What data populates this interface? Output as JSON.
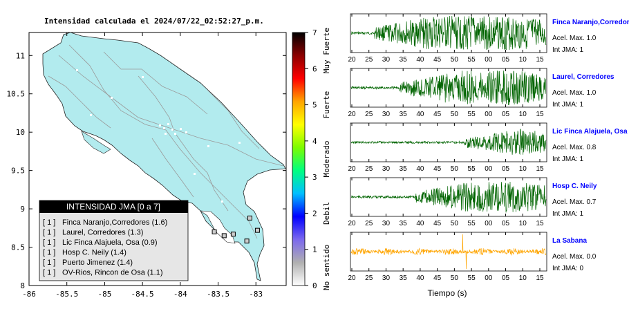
{
  "title": "Intensidad calculada el 2024/07/22_02:52:27_p.m.",
  "chart_data": [
    {
      "type": "map",
      "xlim": [
        -86,
        -82.6
      ],
      "ylim": [
        8,
        11.3
      ],
      "x_ticks": [
        -86,
        -85.5,
        -85,
        -84.5,
        -84,
        -83.5,
        -83
      ],
      "x_tick_labels": [
        "-86",
        "-85.5",
        "-85",
        "-84.5",
        "-84",
        "-83.5",
        "-83"
      ],
      "y_ticks": [
        8,
        8.5,
        9,
        9.5,
        10,
        10.5,
        11
      ],
      "y_tick_labels": [
        "8",
        "8.5",
        "9",
        "9.5",
        "10",
        "10.5",
        "11"
      ],
      "land_color": "#b2ebee",
      "road_color": "#999999",
      "colorbar": {
        "range": [
          0,
          7
        ],
        "tick_labels": [
          "0",
          "1",
          "2",
          "3",
          "4",
          "5",
          "6",
          "7"
        ],
        "category_labels": [
          "No sentido",
          "Debil",
          "Moderado",
          "Fuerte",
          "Muy Fuerte"
        ],
        "colors": [
          "#ffffff",
          "#b0b0b0",
          "#7b68ee",
          "#0000ff",
          "#00bfff",
          "#00ff7f",
          "#7cfc00",
          "#ffff00",
          "#ffa500",
          "#ff0000",
          "#8b0000",
          "#000000"
        ]
      },
      "legend": {
        "title": "INTENSIDAD JMA [0 a 7]",
        "items": [
          {
            "level": "[ 1 ]",
            "text": "Finca Naranjo,Corredores (1.6)"
          },
          {
            "level": "[ 1 ]",
            "text": "Laurel, Corredores (1.3)"
          },
          {
            "level": "[ 1 ]",
            "text": "Lic Finca Alajuela, Osa (0.9)"
          },
          {
            "level": "[ 1 ]",
            "text": "Hosp C. Neily (1.4)"
          },
          {
            "level": "[ 1 ]",
            "text": "Puerto Jimenez (1.4)"
          },
          {
            "level": "[ 1 ]",
            "text": "OV-Rios, Rincon de Osa (1.1)"
          }
        ]
      },
      "stations": [
        {
          "lon": -82.98,
          "lat": 8.72
        },
        {
          "lon": -83.08,
          "lat": 8.88
        },
        {
          "lon": -83.12,
          "lat": 8.58
        },
        {
          "lon": -83.42,
          "lat": 8.65
        },
        {
          "lon": -83.55,
          "lat": 8.7
        },
        {
          "lon": -83.3,
          "lat": 8.67
        }
      ]
    },
    {
      "type": "line",
      "x_tick_labels": [
        "20",
        "25",
        "30",
        "35",
        "40",
        "45",
        "50",
        "55",
        "00",
        "05",
        "10",
        "15"
      ],
      "xlabel": "Tiempo (s)",
      "series": [
        {
          "name": "Finca Naranjo,Corredor",
          "acel_label": "Acel. Max. 1.0",
          "jma_label": "Int JMA: 1",
          "color": "#006400",
          "onset": 0.12,
          "amplitude": 1.0
        },
        {
          "name": "Laurel, Corredores",
          "acel_label": "Acel. Max. 1.0",
          "jma_label": "Int JMA: 1",
          "color": "#006400",
          "onset": 0.25,
          "amplitude": 1.0
        },
        {
          "name": "Lic Finca Alajuela, Osa",
          "acel_label": "Acel. Max. 0.8",
          "jma_label": "Int JMA: 1",
          "color": "#006400",
          "onset": 0.58,
          "amplitude": 0.8
        },
        {
          "name": "Hosp C. Neily",
          "acel_label": "Acel. Max. 0.7",
          "jma_label": "Int JMA: 1",
          "color": "#006400",
          "onset": 0.33,
          "amplitude": 0.9
        },
        {
          "name": "La Sabana",
          "acel_label": "Acel. Max. 0.0",
          "jma_label": "Int JMA: 0",
          "color": "#ffa500",
          "onset": 0.0,
          "amplitude": 0.4
        }
      ]
    }
  ]
}
